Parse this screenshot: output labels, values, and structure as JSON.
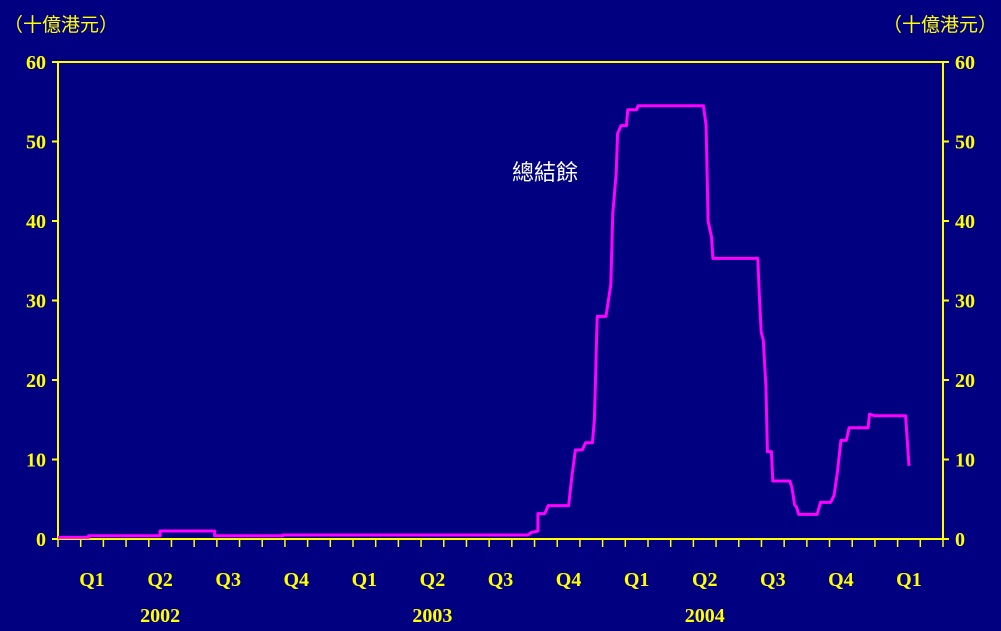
{
  "chart_data": {
    "type": "line",
    "unit_left": "（十億港元）",
    "unit_right": "（十億港元）",
    "ylim": [
      0,
      60
    ],
    "yticks": [
      "0",
      "10",
      "20",
      "30",
      "40",
      "50",
      "60"
    ],
    "quarter_labels": [
      "Q1",
      "Q2",
      "Q3",
      "Q4",
      "Q1",
      "Q2",
      "Q3",
      "Q4",
      "Q1",
      "Q2",
      "Q3",
      "Q4",
      "Q1"
    ],
    "year_labels": [
      "2002",
      "2003",
      "2004"
    ],
    "series": [
      {
        "name": "總結餘",
        "color": "#FF00FF",
        "points": [
          [
            0.0,
            0.2
          ],
          [
            0.45,
            0.2
          ],
          [
            0.45,
            0.4
          ],
          [
            1.5,
            0.4
          ],
          [
            1.5,
            1.0
          ],
          [
            2.3,
            1.0
          ],
          [
            2.3,
            0.4
          ],
          [
            3.3,
            0.4
          ],
          [
            3.3,
            0.5
          ],
          [
            6.9,
            0.5
          ],
          [
            6.95,
            0.8
          ],
          [
            7.05,
            1.0
          ],
          [
            7.05,
            3.2
          ],
          [
            7.15,
            3.2
          ],
          [
            7.2,
            4.2
          ],
          [
            7.5,
            4.2
          ],
          [
            7.55,
            8.0
          ],
          [
            7.6,
            11.2
          ],
          [
            7.7,
            11.2
          ],
          [
            7.75,
            12.1
          ],
          [
            7.85,
            12.1
          ],
          [
            7.88,
            15.0
          ],
          [
            7.92,
            28.0
          ],
          [
            8.05,
            28.0
          ],
          [
            8.12,
            32.0
          ],
          [
            8.15,
            41.0
          ],
          [
            8.2,
            46.0
          ],
          [
            8.22,
            51.0
          ],
          [
            8.27,
            52.0
          ],
          [
            8.35,
            52.0
          ],
          [
            8.37,
            54.0
          ],
          [
            8.5,
            54.0
          ],
          [
            8.52,
            54.5
          ],
          [
            9.48,
            54.5
          ],
          [
            9.52,
            52.0
          ],
          [
            9.55,
            40.0
          ],
          [
            9.6,
            38.0
          ],
          [
            9.62,
            35.3
          ],
          [
            10.28,
            35.3
          ],
          [
            10.3,
            31.0
          ],
          [
            10.33,
            26.0
          ],
          [
            10.36,
            25.0
          ],
          [
            10.4,
            19.0
          ],
          [
            10.42,
            11.0
          ],
          [
            10.48,
            11.0
          ],
          [
            10.5,
            7.3
          ],
          [
            10.75,
            7.3
          ],
          [
            10.78,
            6.5
          ],
          [
            10.82,
            4.3
          ],
          [
            10.85,
            4.0
          ],
          [
            10.88,
            3.1
          ],
          [
            11.15,
            3.1
          ],
          [
            11.2,
            4.6
          ],
          [
            11.35,
            4.6
          ],
          [
            11.4,
            5.5
          ],
          [
            11.45,
            8.5
          ],
          [
            11.5,
            12.4
          ],
          [
            11.58,
            12.4
          ],
          [
            11.62,
            14.0
          ],
          [
            11.9,
            14.0
          ],
          [
            11.92,
            15.7
          ],
          [
            12.0,
            15.5
          ],
          [
            12.45,
            15.5
          ],
          [
            12.5,
            9.2
          ]
        ]
      }
    ]
  }
}
